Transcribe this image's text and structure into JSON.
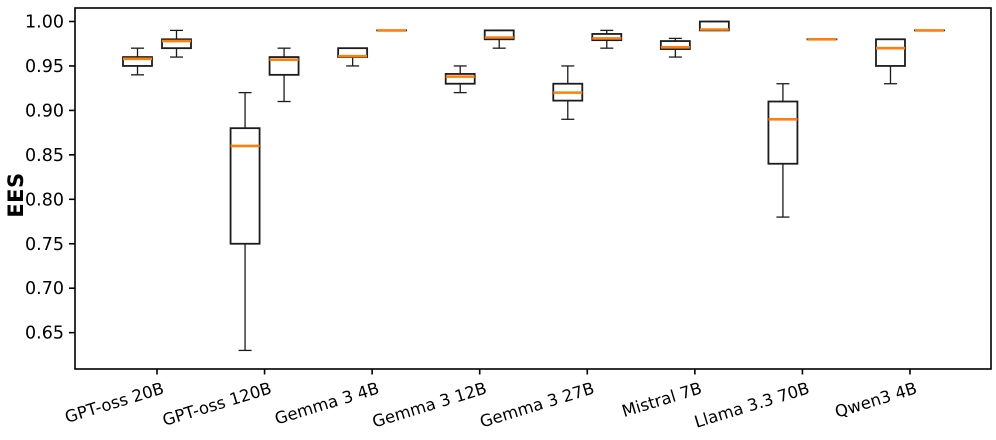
{
  "chart_data": {
    "type": "boxplot",
    "title": "",
    "xlabel": "",
    "ylabel": "EES",
    "ylim": [
      0.609,
      1.015
    ],
    "grid": false,
    "legend": "none",
    "boxes_per_category": 2,
    "y_ticks": [
      "0.65",
      "0.70",
      "0.75",
      "0.80",
      "0.85",
      "0.90",
      "0.95",
      "1.00"
    ],
    "colors": {
      "box_edge": "#1c1c1c",
      "median": "#ff7f0e",
      "whisker": "#1c1c1c",
      "spine": "#000000",
      "background": "#ffffff"
    },
    "stats_order": [
      "whisker_low",
      "q1",
      "median",
      "q3",
      "whisker_high"
    ],
    "categories": [
      {
        "label": "GPT-oss 20B",
        "boxes": [
          [
            0.94,
            0.95,
            0.958,
            0.96,
            0.97
          ],
          [
            0.96,
            0.97,
            0.978,
            0.98,
            0.99
          ]
        ]
      },
      {
        "label": "GPT-oss 120B",
        "boxes": [
          [
            0.63,
            0.75,
            0.86,
            0.88,
            0.92
          ],
          [
            0.91,
            0.94,
            0.957,
            0.96,
            0.97
          ]
        ]
      },
      {
        "label": "Gemma 3 4B",
        "boxes": [
          [
            0.95,
            0.96,
            0.961,
            0.97,
            0.97
          ],
          [
            0.99,
            0.99,
            0.99,
            0.99,
            0.99
          ]
        ]
      },
      {
        "label": "Gemma 3 12B",
        "boxes": [
          [
            0.92,
            0.93,
            0.938,
            0.941,
            0.95
          ],
          [
            0.97,
            0.98,
            0.982,
            0.99,
            0.99
          ]
        ]
      },
      {
        "label": "Gemma 3 27B",
        "boxes": [
          [
            0.89,
            0.911,
            0.92,
            0.93,
            0.95
          ],
          [
            0.97,
            0.979,
            0.981,
            0.986,
            0.99
          ]
        ]
      },
      {
        "label": "Mistral 7B",
        "boxes": [
          [
            0.96,
            0.969,
            0.971,
            0.978,
            0.981
          ],
          [
            0.99,
            0.99,
            0.991,
            1.0,
            1.0
          ]
        ]
      },
      {
        "label": "Llama 3.3 70B",
        "boxes": [
          [
            0.78,
            0.84,
            0.89,
            0.91,
            0.93
          ],
          [
            0.98,
            0.98,
            0.98,
            0.98,
            0.98
          ]
        ]
      },
      {
        "label": "Qwen3 4B",
        "boxes": [
          [
            0.93,
            0.95,
            0.97,
            0.98,
            0.98
          ],
          [
            0.99,
            0.99,
            0.99,
            0.99,
            0.99
          ]
        ]
      }
    ]
  }
}
